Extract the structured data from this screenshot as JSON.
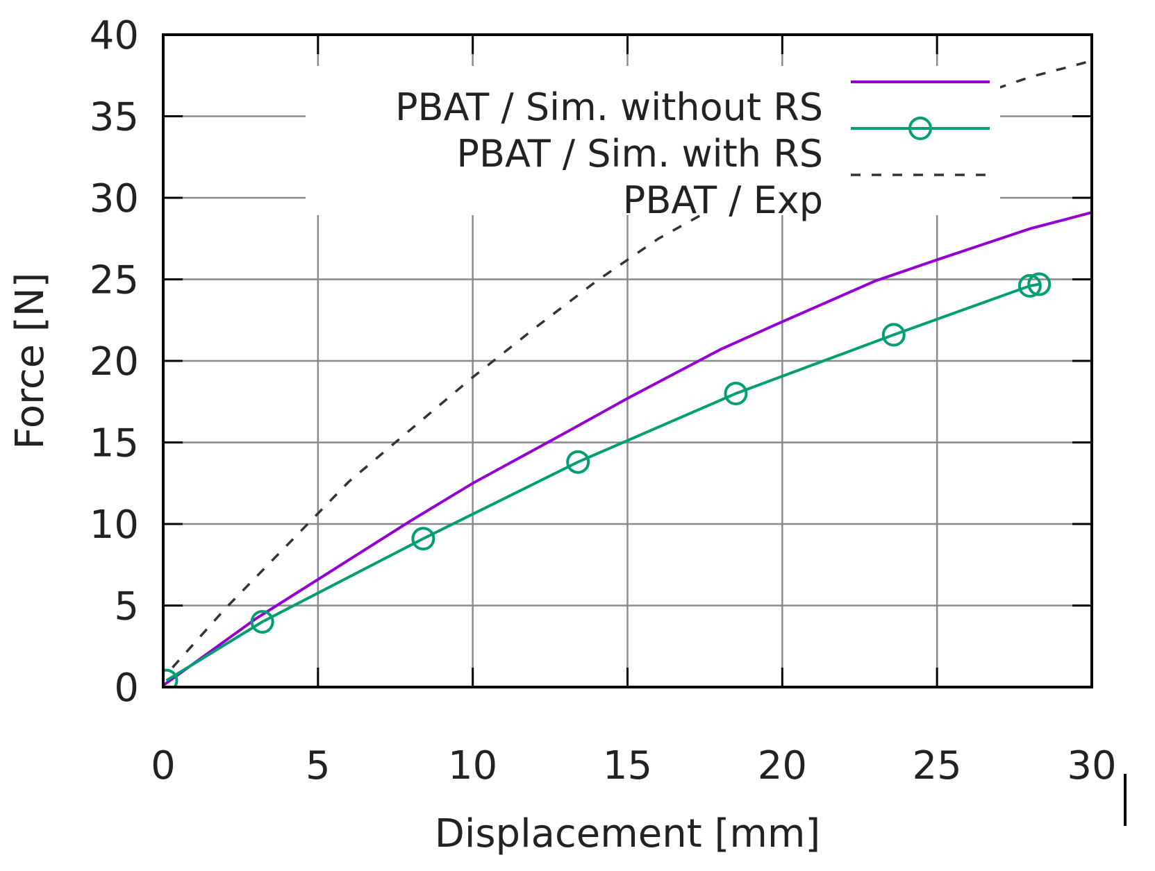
{
  "chart_data": {
    "type": "line",
    "xlabel": "Displacement [mm]",
    "ylabel": "Force [N]",
    "xlim": [
      0,
      30
    ],
    "ylim": [
      0,
      40
    ],
    "x_ticks": [
      "0",
      "5",
      "10",
      "15",
      "20",
      "25",
      "30"
    ],
    "y_ticks": [
      "0",
      "5",
      "10",
      "15",
      "20",
      "25",
      "30",
      "35",
      "40"
    ],
    "grid": true,
    "legend_position": "top-right",
    "series": [
      {
        "name": "PBAT / Sim. without RS",
        "color": "#9400d3",
        "style": "solid",
        "marker": "none",
        "x": [
          0,
          3,
          5,
          8,
          10,
          13,
          15,
          18,
          20,
          23,
          25,
          28,
          30
        ],
        "y": [
          0.1,
          4.2,
          6.6,
          10.2,
          12.5,
          15.6,
          17.7,
          20.7,
          22.4,
          24.9,
          26.2,
          28.1,
          29.1
        ]
      },
      {
        "name": "PBAT / Sim. with RS",
        "color": "#009e73",
        "style": "solid",
        "marker": "circle",
        "x": [
          0.1,
          3.2,
          8.4,
          13.4,
          18.5,
          23.6,
          28.0,
          28.3
        ],
        "y": [
          0.4,
          4.0,
          9.1,
          13.8,
          18.0,
          21.6,
          24.6,
          24.7
        ]
      },
      {
        "name": "PBAT / Exp",
        "color": "#333333",
        "style": "dashed",
        "marker": "none",
        "x": [
          0.3,
          2,
          4,
          6,
          8,
          10,
          12,
          14,
          16,
          18,
          20,
          22,
          24,
          26,
          28,
          30
        ],
        "y": [
          1.2,
          4.8,
          8.7,
          12.6,
          15.8,
          19.0,
          22.0,
          24.9,
          27.5,
          29.6,
          31.5,
          33.2,
          34.7,
          36.1,
          37.4,
          38.4
        ]
      }
    ]
  }
}
